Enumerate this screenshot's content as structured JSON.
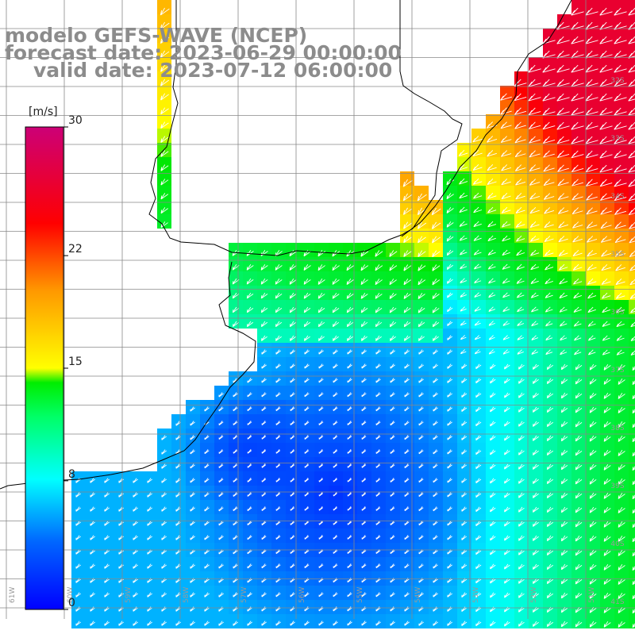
{
  "title": {
    "model": "modelo GEFS-WAVE (NCEP)",
    "forecast": "forecast date: 2023-06-29 00:00:00",
    "valid": "valid date: 2023-07-12 06:00:00"
  },
  "colorbar": {
    "unit": "[m/s]",
    "ticks": [
      "30",
      "22",
      "15",
      "8",
      "0"
    ],
    "tick_values": [
      30,
      22,
      15,
      8,
      0
    ],
    "colors": [
      "#0000ff",
      "#00aaff",
      "#00ffff",
      "#00ff00",
      "#ffff00",
      "#ff8800",
      "#ff0000",
      "#cc0077"
    ]
  },
  "map": {
    "lat_labels": [
      "32S",
      "33S",
      "34S",
      "35S",
      "36S",
      "37S",
      "38S",
      "39S",
      "40S",
      "41S"
    ],
    "lon_labels": [
      "61W",
      "60W",
      "59W",
      "58W",
      "57W",
      "56W",
      "55W",
      "54W",
      "53W",
      "52W",
      "51W"
    ],
    "arrow_color": "#ffffff",
    "grid_color": "#888888",
    "coast_color": "#000000"
  }
}
